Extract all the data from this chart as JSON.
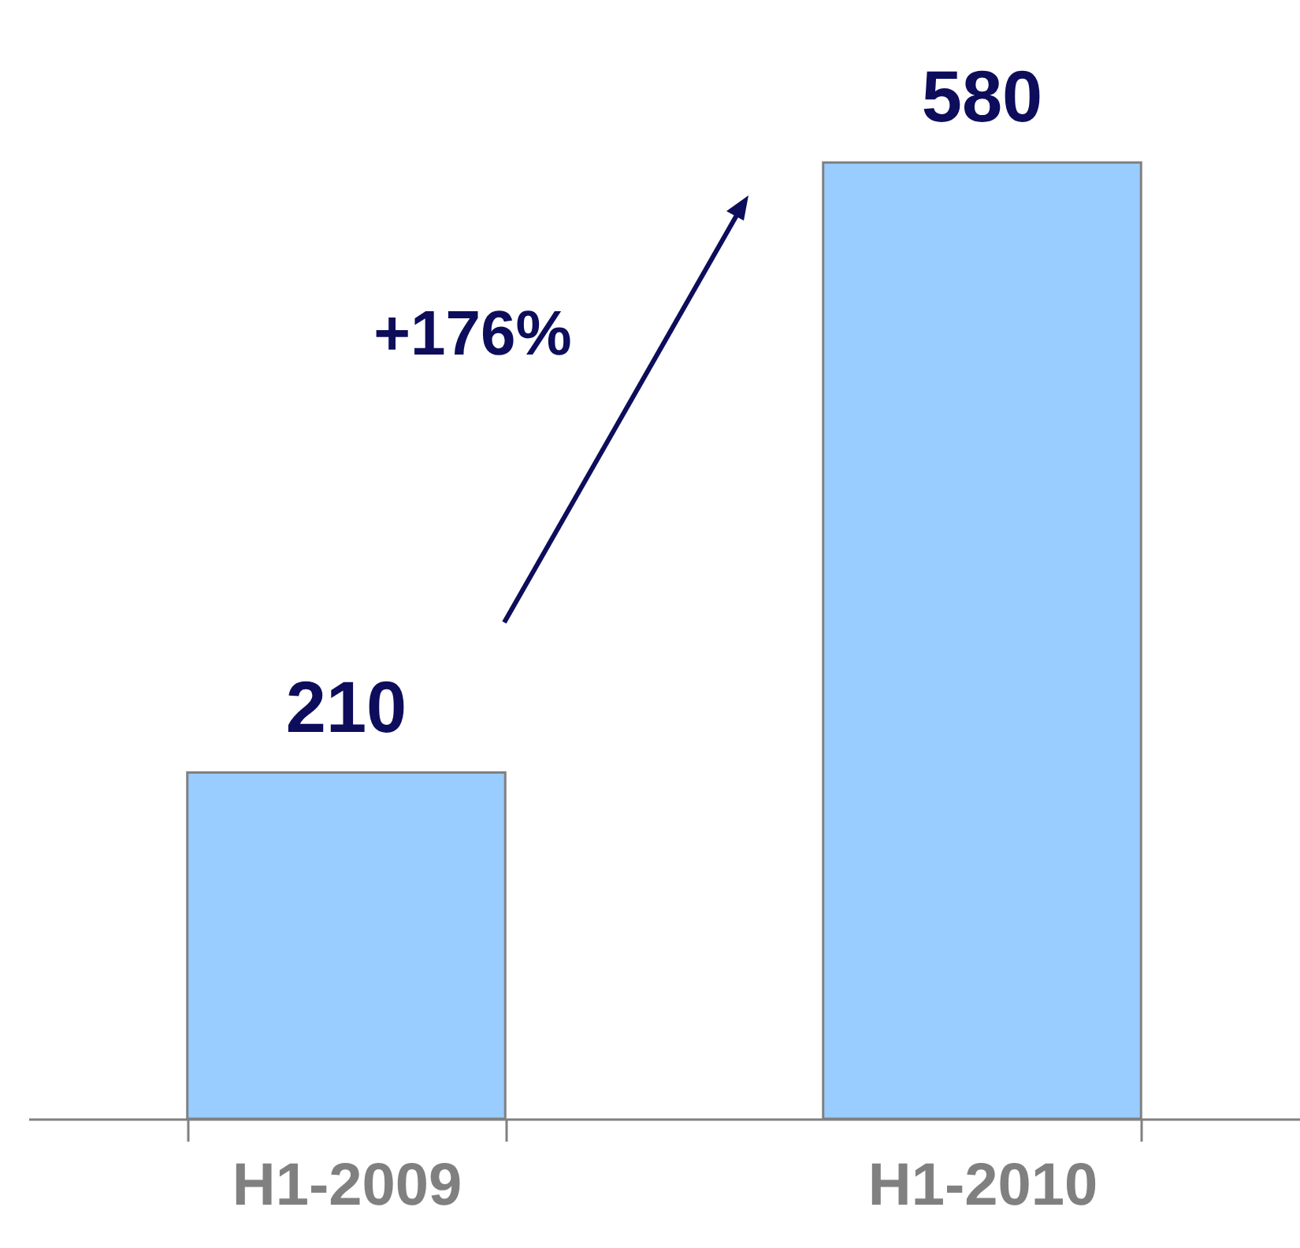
{
  "chart_data": {
    "type": "bar",
    "categories": [
      "H1-2009",
      "H1-2010"
    ],
    "values": [
      210,
      580
    ],
    "color": "#99ccff",
    "data_labels": true,
    "annotations": [
      "+176%"
    ]
  }
}
